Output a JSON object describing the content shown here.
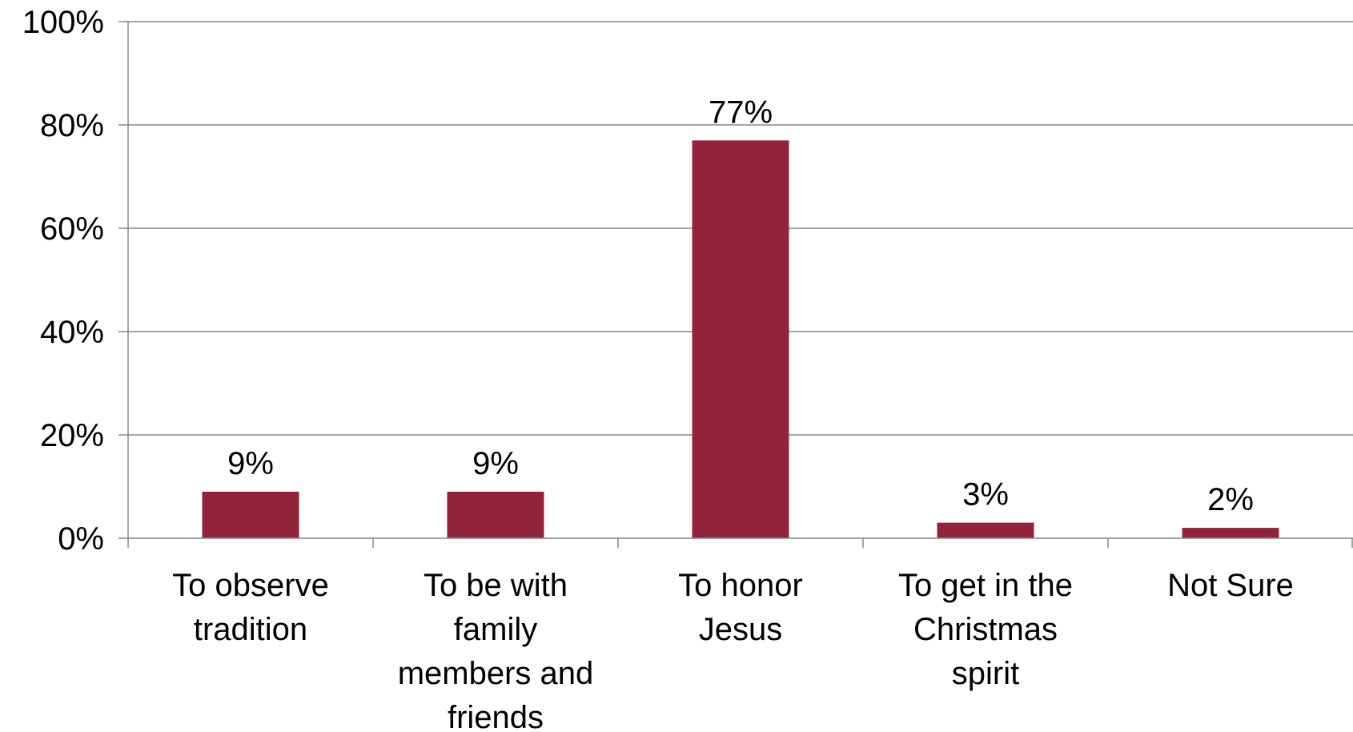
{
  "chart_data": {
    "type": "bar",
    "categories": [
      [
        "To observe",
        "tradition"
      ],
      [
        "To be with",
        "family",
        "members and",
        "friends"
      ],
      [
        "To honor",
        "Jesus"
      ],
      [
        "To get in the",
        "Christmas",
        "spirit"
      ],
      [
        "Not Sure"
      ]
    ],
    "values": [
      9,
      9,
      77,
      3,
      2
    ],
    "value_labels": [
      "9%",
      "9%",
      "77%",
      "3%",
      "2%"
    ],
    "ylim": [
      0,
      100
    ],
    "yticks": [
      0,
      20,
      40,
      60,
      80,
      100
    ],
    "ytick_labels": [
      "0%",
      "20%",
      "40%",
      "60%",
      "80%",
      "100%"
    ],
    "grid": true,
    "legend": "none",
    "title": "",
    "xlabel": "",
    "ylabel": "",
    "colors": {
      "bar": "#93233a",
      "grid": "#888888",
      "axis": "#888888"
    }
  }
}
